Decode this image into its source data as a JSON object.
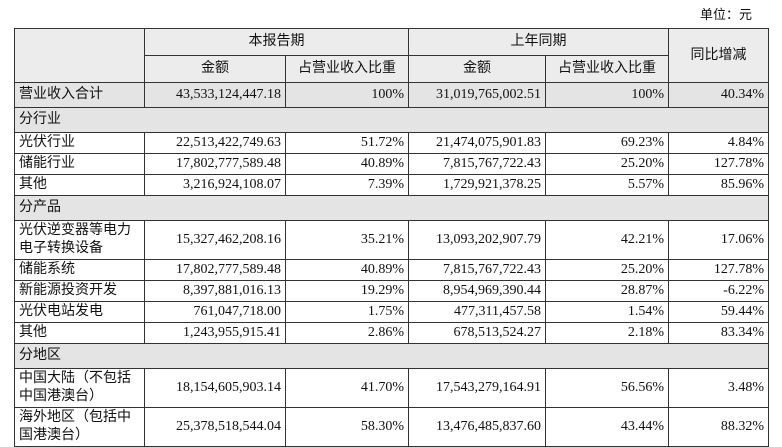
{
  "header": {
    "unit": "单位：元"
  },
  "table": {
    "header_groups": [
      "本报告期",
      "上年同期",
      "同比增减"
    ],
    "columns": [
      "金额",
      "占营业收入比重",
      "金额",
      "占营业收入比重"
    ],
    "rows": [
      [
        "营业收入合计",
        "43,533,124,447.18",
        "100%",
        "31,019,765,002.51",
        "100%",
        "40.34%"
      ],
      [
        "分行业"
      ],
      [
        "光伏行业",
        "22,513,422,749.63",
        "51.72%",
        "21,474,075,901.83",
        "69.23%",
        "4.84%"
      ],
      [
        "储能行业",
        "17,802,777,589.48",
        "40.89%",
        "7,815,767,722.43",
        "25.20%",
        "127.78%"
      ],
      [
        "其他",
        "3,216,924,108.07",
        "7.39%",
        "1,729,921,378.25",
        "5.57%",
        "85.96%"
      ],
      [
        "分产品"
      ],
      [
        "光伏逆变器等电力电子转换设备",
        "15,327,462,208.16",
        "35.21%",
        "13,093,202,907.79",
        "42.21%",
        "17.06%"
      ],
      [
        "储能系统",
        "17,802,777,589.48",
        "40.89%",
        "7,815,767,722.43",
        "25.20%",
        "127.78%"
      ],
      [
        "新能源投资开发",
        "8,397,881,016.13",
        "19.29%",
        "8,954,969,390.44",
        "28.87%",
        "-6.22%"
      ],
      [
        "光伏电站发电",
        "761,047,718.00",
        "1.75%",
        "477,311,457.58",
        "1.54%",
        "59.44%"
      ],
      [
        "其他",
        "1,243,955,915.41",
        "2.86%",
        "678,513,524.27",
        "2.18%",
        "83.34%"
      ],
      [
        "分地区"
      ],
      [
        "中国大陆（不包括中国港澳台）",
        "18,154,605,903.14",
        "41.70%",
        "17,543,279,164.91",
        "56.56%",
        "3.48%"
      ],
      [
        "海外地区（包括中国港澳台）",
        "25,378,518,544.04",
        "58.30%",
        "13,476,485,837.60",
        "43.44%",
        "88.32%"
      ]
    ]
  }
}
